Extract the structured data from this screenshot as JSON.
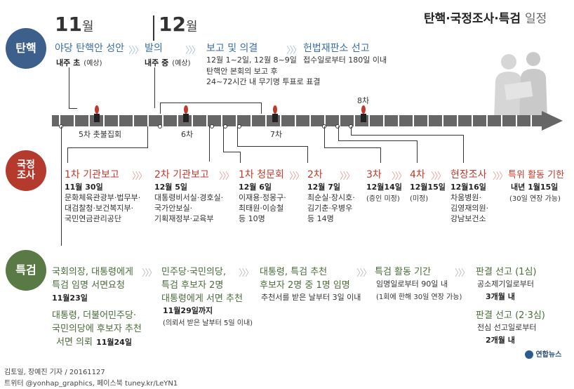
{
  "title": {
    "main": "탄핵·국정조사·특검",
    "light": "일정"
  },
  "months": {
    "nov_num": "11",
    "nov_unit": "월",
    "dec_num": "12",
    "dec_unit": "월"
  },
  "sections": {
    "impeach": "탄핵",
    "probe_1": "국정",
    "probe_2": "조사",
    "special": "특검"
  },
  "impeach": {
    "e1_title": "야당 탄핵안 성안",
    "e1_sub": "내주 초",
    "e1_note": "(예상)",
    "e2_title": "발의",
    "e2_sub": "내주 중",
    "e2_note": "(예상)",
    "e3_title": "보고 및 의결",
    "e3_line1": "12월 1~2일, 12월 8~9일",
    "e3_line2": "탄핵안 본회의 보고 후",
    "e3_line3": "24~72시간 내 무기명 투표로 표결",
    "e4_title": "헌법재판소 선고",
    "e4_sub": "접수일로부터 180일 이내"
  },
  "timeline": {
    "rally5": "5차 촛불집회",
    "rally6": "6차",
    "rally7": "7차",
    "rally8": "8차"
  },
  "probe": {
    "p1_title": "1차 기관보고",
    "p1_date": "11월 30일",
    "p1_l1": "문화체육관광부·법무부·",
    "p1_l2": "대검찰청·보건복지부·",
    "p1_l3": "국민연금관리공단",
    "p2_title": "2차 기관보고",
    "p2_date": "12월 5일",
    "p2_l1": "대통령비서실·경호실·",
    "p2_l2": "국가안보실·",
    "p2_l3": "기획재정부·교육부",
    "p3_title": "1차 청문회",
    "p3_date": "12월 6일",
    "p3_l1": "이재용·정몽구·",
    "p3_l2": "최태원·이승철",
    "p3_l3": "등 10명",
    "p4_title": "2차",
    "p4_date": "12월 7일",
    "p4_l1": "최순실·장시호·",
    "p4_l2": "김기춘·우병우",
    "p4_l3": "등 14명",
    "p5_title": "3차",
    "p5_date": "12월14일",
    "p5_l1": "(증인 미정)",
    "p6_title": "4차",
    "p6_date": "12월15일",
    "p6_l1": "(미정)",
    "p7_title": "현장조사",
    "p7_date": "12월16일",
    "p7_l1": "차움병원·",
    "p7_l2": "김영재의원·",
    "p7_l3": "강남보건소",
    "p8_title": "특위 활동 기한",
    "p8_date": "내년 1월15일",
    "p8_l1": "(30일 연장 가능)"
  },
  "special": {
    "s1_t1": "국회의장, 대통령에게",
    "s1_t2": "특검 임명 서면요청",
    "s1_date": "11월23일",
    "s1b_t1": "대통령, 더불어민주당·",
    "s1b_t2": "국민의당에 후보자 추천",
    "s1b_t3": "서면 의뢰",
    "s1b_date": "11월24일",
    "s2_t1": "민주당·국민의당,",
    "s2_t2": "특검 후보자 2명",
    "s2_t3": "대통령에게 서면 추천",
    "s2_date": "11월29일까지",
    "s2_note": "(의뢰서 받은 날부터 5일 이내)",
    "s3_t1": "대통령, 특검 추천",
    "s3_t2": "후보자 2명 중 1명 임명",
    "s3_l1": "추천서를 받은 날부터 3일 이내",
    "s4_t1": "특검 활동 기간",
    "s4_l1": "임명일로부터 90일 내",
    "s4_l2": "(1회에 한해 30일 연장 가능)",
    "s5_t1": "판결 선고 (1심)",
    "s5_l1": "공소제기일로부터",
    "s5_l2": "3개월 내",
    "s6_t1": "판결 선고 (2·3심)",
    "s6_l1": "전심 선고일로부터",
    "s6_l2": "2개월 내"
  },
  "arrow_glyph": "〉〉〉",
  "footer": {
    "credit": "김토일, 장예진 기자 / 20161127",
    "sns": "트위터 @yonhap_graphics, 페이스북 tuney.kr/LeYN1",
    "logo": "연합뉴스"
  },
  "colors": {
    "impeach": "#3d5f8c",
    "probe": "#b53a2e",
    "special": "#5a7a45",
    "bar": "#555555"
  }
}
